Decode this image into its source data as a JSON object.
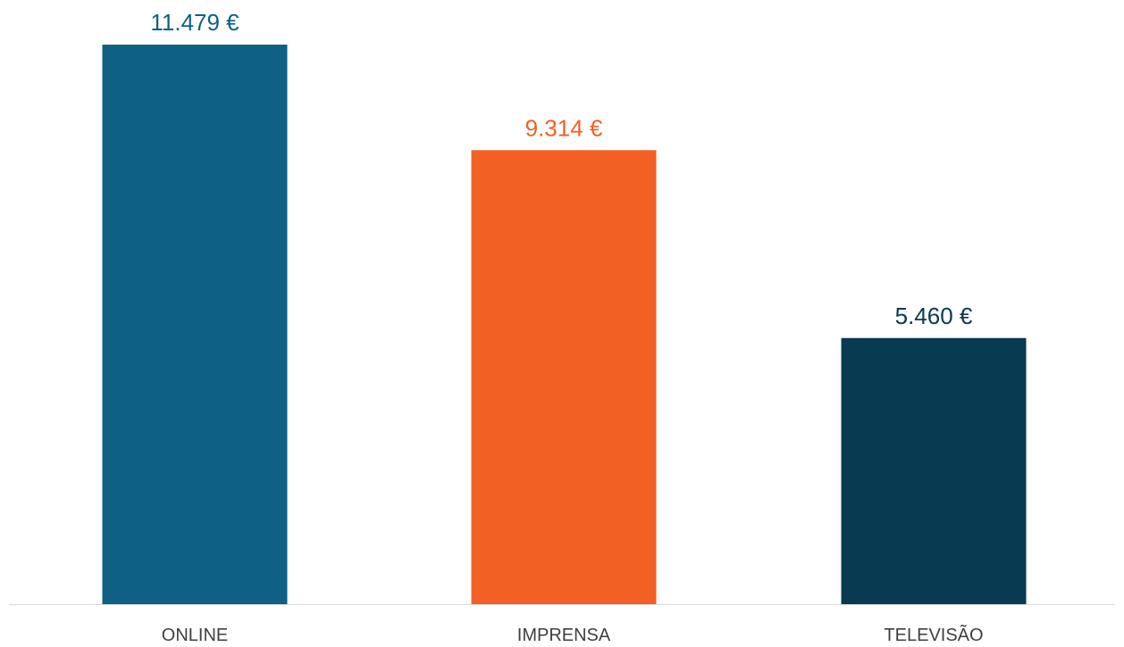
{
  "chart_data": {
    "type": "bar",
    "categories": [
      "ONLINE",
      "IMPRENSA",
      "TELEVISÃO"
    ],
    "values": [
      11479,
      9314,
      5460
    ],
    "value_labels": [
      "11.479 €",
      "9.314 €",
      "5.460 €"
    ],
    "bar_colors": [
      "#0e6085",
      "#f26024",
      "#083a51"
    ],
    "label_colors": [
      "#0e6085",
      "#f26024",
      "#083a51"
    ],
    "axis_color": "#d9d9d9",
    "grid": false,
    "legend": "none"
  }
}
